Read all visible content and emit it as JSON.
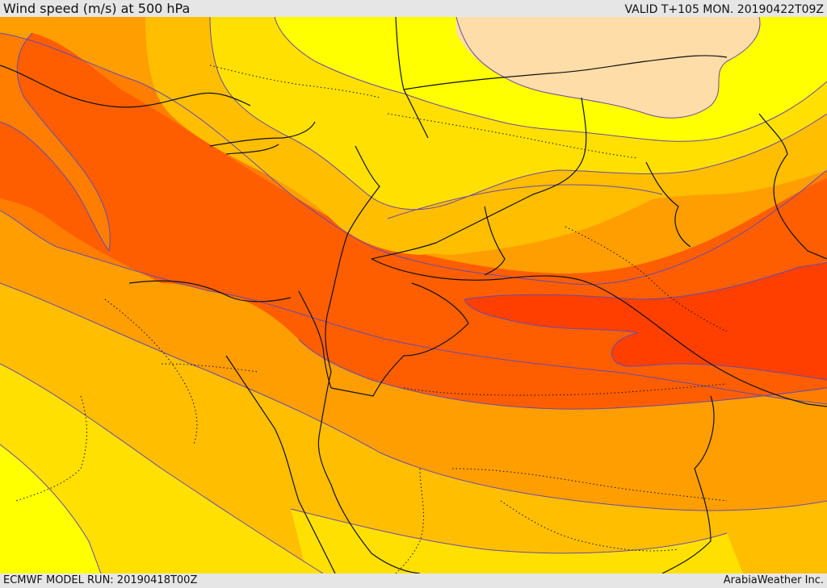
{
  "header": {
    "title": "Wind speed (m/s) at 500 hPa",
    "valid_time": "VALID T+105 MON. 20190422T09Z"
  },
  "footer": {
    "model_run": "ECMWF MODEL RUN: 20190418T00Z",
    "credit": "ArabiaWeather Inc."
  },
  "map": {
    "variable": "wind-speed",
    "pressure_level": "500 hPa",
    "palette": {
      "very_light": "#ffdda8",
      "light_yellow": "#ffff00",
      "yellow": "#ffe000",
      "light_orange": "#ffbe00",
      "orange": "#ff9e00",
      "dark_orange": "#ff7e00",
      "red_orange": "#ff5e00",
      "red": "#ff3f00"
    },
    "contour_color": "#6a4aa8",
    "border_color": "#111111"
  }
}
